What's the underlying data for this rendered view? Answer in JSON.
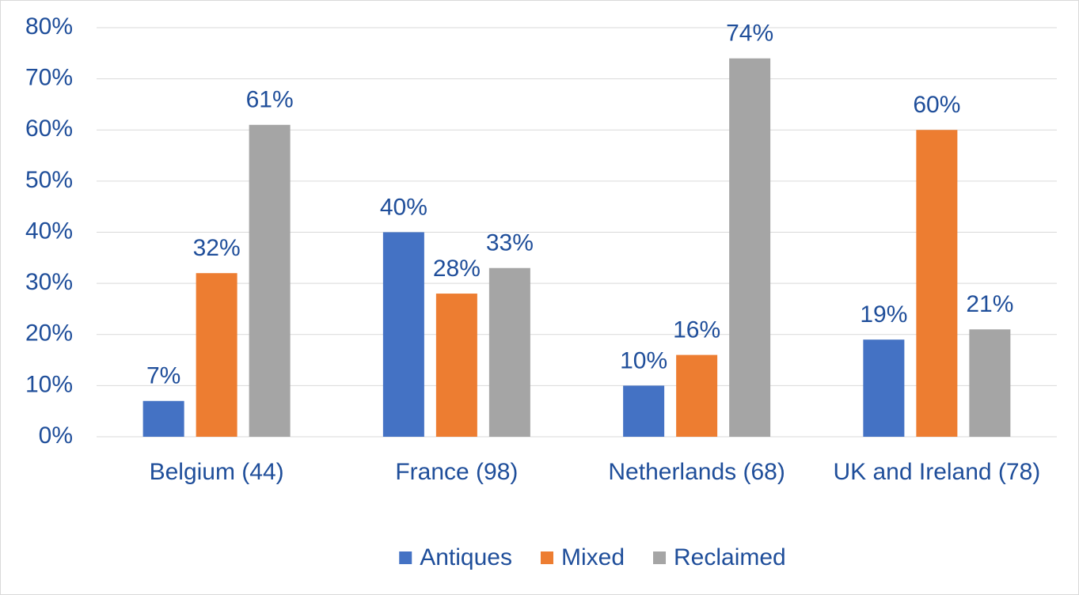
{
  "chart_data": {
    "type": "bar",
    "categories": [
      "Belgium (44)",
      "France (98)",
      "Netherlands (68)",
      "UK and Ireland (78)"
    ],
    "series": [
      {
        "name": "Antiques",
        "color": "#4472c4",
        "values": [
          7,
          40,
          10,
          19
        ],
        "value_labels": [
          "7%",
          "40%",
          "10%",
          "19%"
        ]
      },
      {
        "name": "Mixed",
        "color": "#ed7d31",
        "values": [
          32,
          28,
          16,
          60
        ],
        "value_labels": [
          "32%",
          "28%",
          "16%",
          "60%"
        ]
      },
      {
        "name": "Reclaimed",
        "color": "#a5a5a5",
        "values": [
          61,
          33,
          74,
          21
        ],
        "value_labels": [
          "61%",
          "33%",
          "74%",
          "21%"
        ]
      }
    ],
    "ylim": [
      0,
      80
    ],
    "yticks": [
      {
        "value": 0,
        "label": "0%"
      },
      {
        "value": 10,
        "label": "10%"
      },
      {
        "value": 20,
        "label": "20%"
      },
      {
        "value": 30,
        "label": "30%"
      },
      {
        "value": 40,
        "label": "40%"
      },
      {
        "value": 50,
        "label": "50%"
      },
      {
        "value": 60,
        "label": "60%"
      },
      {
        "value": 70,
        "label": "70%"
      },
      {
        "value": 80,
        "label": "80%"
      }
    ],
    "grid": true,
    "legend": "bottom"
  }
}
